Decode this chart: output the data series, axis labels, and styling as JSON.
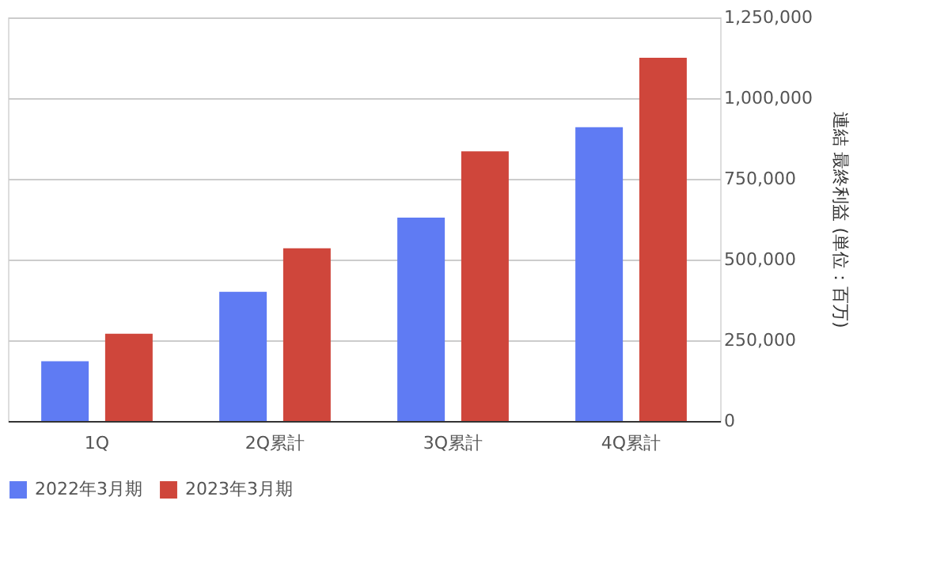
{
  "chart_data": {
    "type": "bar",
    "ylabel": "連結 最終利益 (単位：百万)",
    "categories": [
      "1Q",
      "2Q累計",
      "3Q累計",
      "4Q累計"
    ],
    "series": [
      {
        "name": "2022年3月期",
        "color": "#5f7bf3",
        "values": [
          185000,
          400000,
          630000,
          910000
        ]
      },
      {
        "name": "2023年3月期",
        "color": "#cf463b",
        "values": [
          270000,
          535000,
          835000,
          1125000
        ]
      }
    ],
    "ylim": [
      0,
      1250000
    ],
    "yticks": [
      0,
      {
        "value": 250000,
        "label": "250,000"
      },
      {
        "value": 500000,
        "label": "500,000"
      },
      {
        "value": 750000,
        "label": "750,000"
      },
      {
        "value": 1000000,
        "label": "1,000,000"
      },
      {
        "value": 1250000,
        "label": "1,250,000"
      }
    ],
    "grid": "y",
    "legend": "bottom"
  }
}
